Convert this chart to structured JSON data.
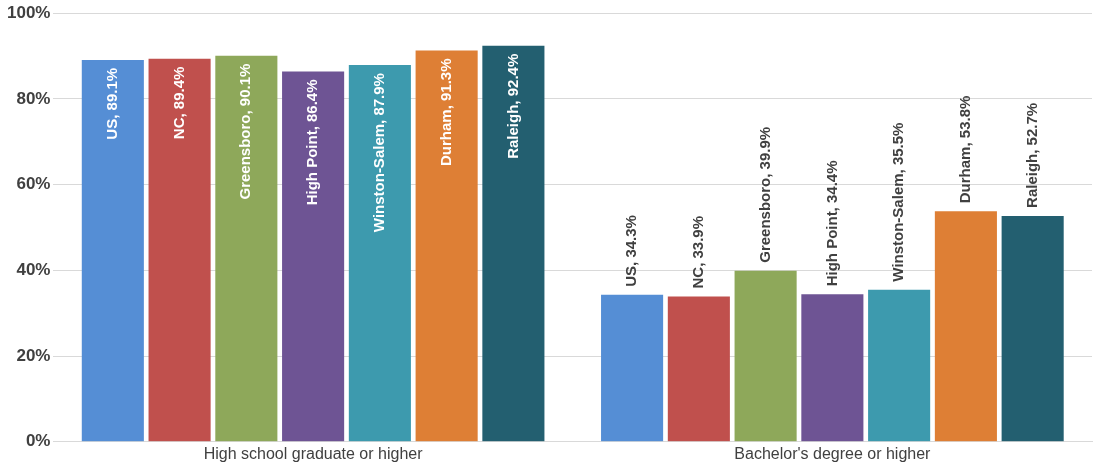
{
  "chart_data": {
    "type": "bar",
    "categories": [
      "High school graduate or higher",
      "Bachelor's degree or higher"
    ],
    "series": [
      {
        "color": "#558ed5",
        "values": [
          89.1,
          34.3
        ],
        "value_labels": [
          "US, 89.1%",
          "US, 34.3%"
        ]
      },
      {
        "color": "#c0504d",
        "values": [
          89.4,
          33.9
        ],
        "value_labels": [
          "NC, 89.4%",
          "NC, 33.9%"
        ]
      },
      {
        "color": "#8ea85a",
        "values": [
          90.1,
          39.9
        ],
        "value_labels": [
          "Greensboro, 90.1%",
          "Greensboro, 39.9%"
        ]
      },
      {
        "color": "#6e5494",
        "values": [
          86.4,
          34.4
        ],
        "value_labels": [
          "High Point, 86.4%",
          "High Point, 34.4%"
        ]
      },
      {
        "color": "#3d9aae",
        "values": [
          87.9,
          35.5
        ],
        "value_labels": [
          "Winston-Salem, 87.9%",
          "Winston-Salem, 35.5%"
        ]
      },
      {
        "color": "#de7f35",
        "values": [
          91.3,
          53.8
        ],
        "value_labels": [
          "Durham, 91.3%",
          "Durham, 53.8%"
        ]
      },
      {
        "color": "#235f70",
        "values": [
          92.4,
          52.7
        ],
        "value_labels": [
          "Raleigh, 92.4%",
          "Raleigh, 52.7%"
        ]
      }
    ],
    "ylim": [
      0,
      100
    ],
    "yticks": [
      {
        "value": 0,
        "label": "0%"
      },
      {
        "value": 20,
        "label": "20%"
      },
      {
        "value": 40,
        "label": "40%"
      },
      {
        "value": 60,
        "label": "60%"
      },
      {
        "value": 80,
        "label": "80%"
      },
      {
        "value": 100,
        "label": "100%"
      }
    ],
    "grid": "y",
    "legend": false
  }
}
